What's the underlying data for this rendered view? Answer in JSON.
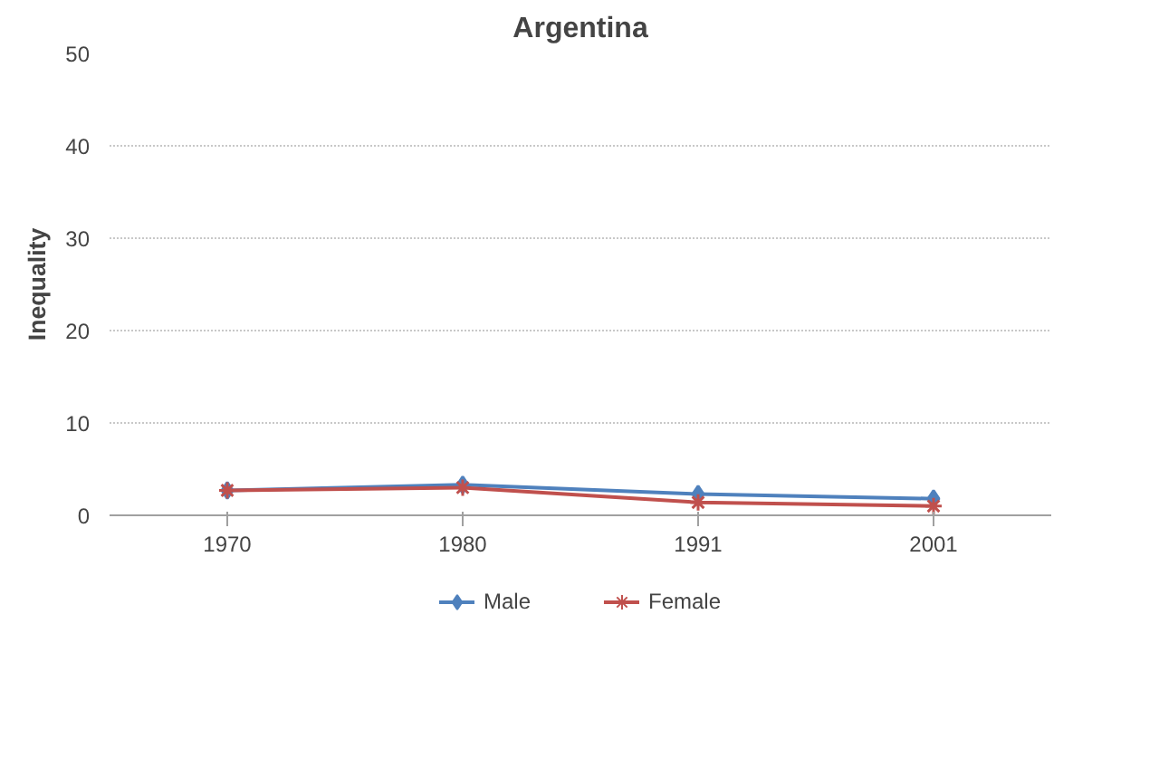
{
  "chart_data": {
    "type": "line",
    "title": "Argentina",
    "ylabel": "Inequality",
    "categories": [
      "1970",
      "1980",
      "1991",
      "2001"
    ],
    "series": [
      {
        "name": "Male",
        "color": "#4f81bd",
        "values": [
          2.7,
          3.3,
          2.3,
          1.8
        ],
        "marker": "diamond"
      },
      {
        "name": "Female",
        "color": "#c0504d",
        "values": [
          2.7,
          3.0,
          1.4,
          1.0
        ],
        "marker": "cross"
      }
    ],
    "ylim": [
      0,
      50
    ],
    "yticks": [
      0,
      10,
      20,
      30,
      40,
      50
    ],
    "grid": "y",
    "legend": "bottom"
  }
}
